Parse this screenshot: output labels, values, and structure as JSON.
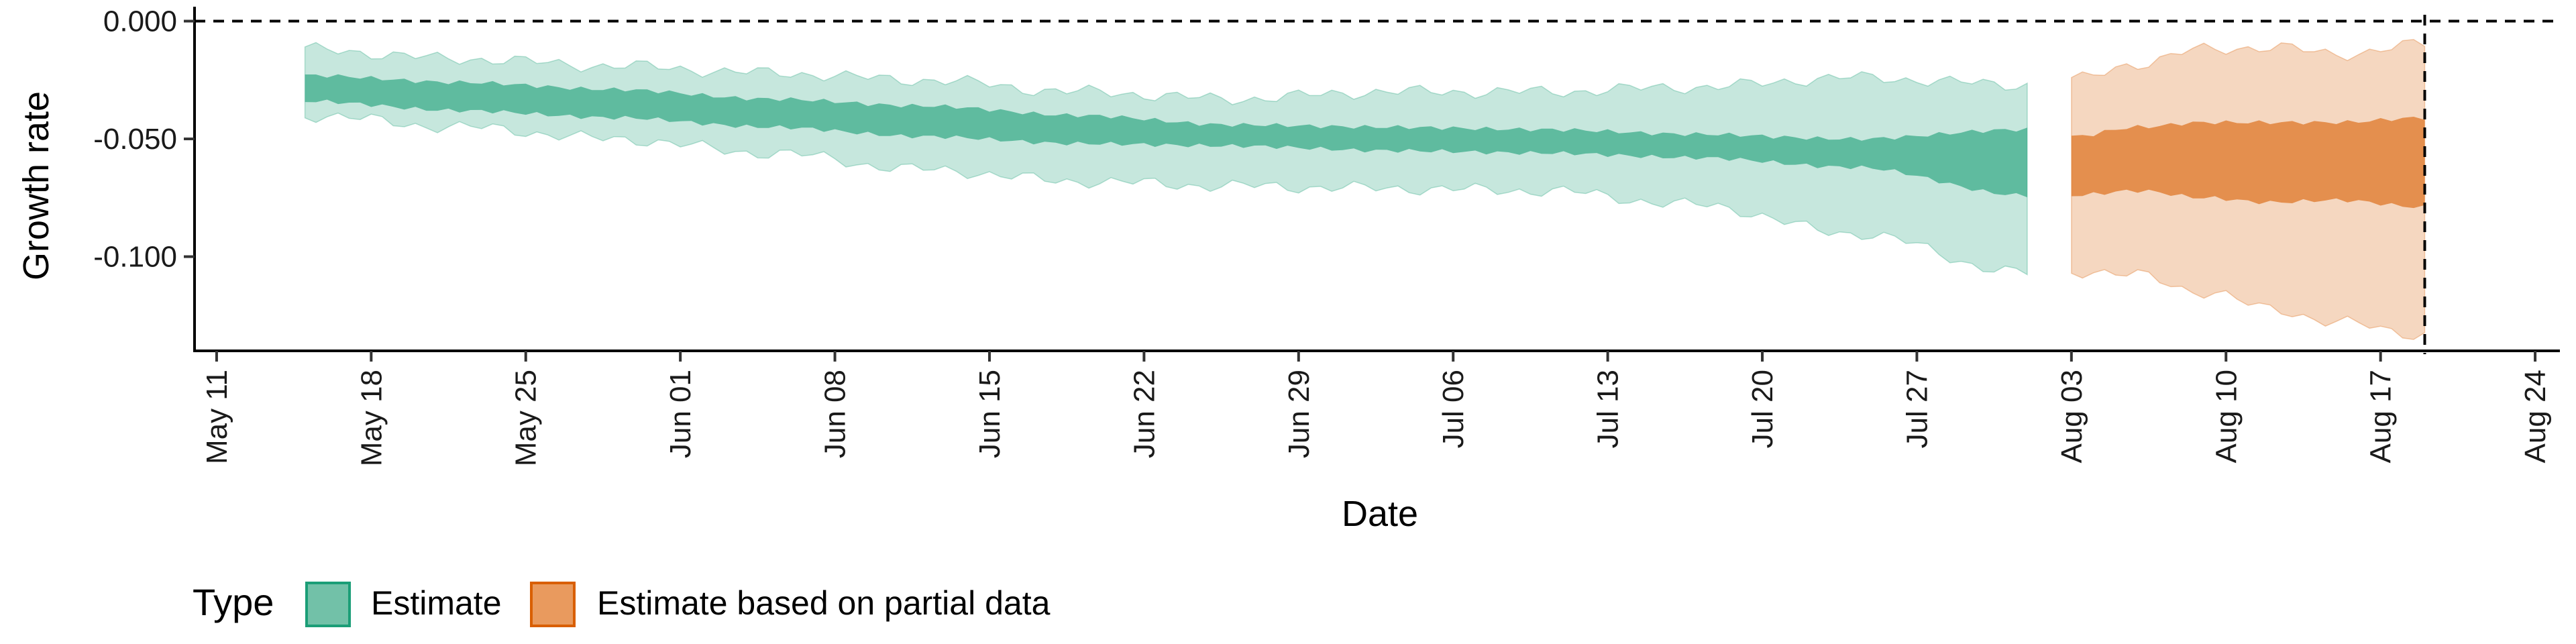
{
  "chart_data": {
    "type": "area",
    "xlabel": "Date",
    "ylabel": "Growth rate",
    "y_ticks": [
      0,
      -0.05,
      -0.1
    ],
    "y_tick_labels": [
      "0.000",
      "-0.050",
      "-0.100"
    ],
    "ylim": [
      -0.14,
      0.001
    ],
    "x_ticks": [
      "2021-05-11",
      "2021-05-18",
      "2021-05-25",
      "2021-06-01",
      "2021-06-08",
      "2021-06-15",
      "2021-06-22",
      "2021-06-29",
      "2021-07-06",
      "2021-07-13",
      "2021-07-20",
      "2021-07-27",
      "2021-08-03",
      "2021-08-10",
      "2021-08-17",
      "2021-08-24"
    ],
    "x_tick_labels": [
      "May 11",
      "May 18",
      "May 25",
      "Jun 01",
      "Jun 08",
      "Jun 15",
      "Jun 22",
      "Jun 29",
      "Jul 06",
      "Jul 13",
      "Jul 20",
      "Jul 27",
      "Aug 03",
      "Aug 10",
      "Aug 17",
      "Aug 24"
    ],
    "xlim": [
      "2021-05-10",
      "2021-08-25"
    ],
    "reference_lines": {
      "horizontal_y": 0,
      "vertical_x": "2021-08-19",
      "style": "dashed"
    },
    "legend": {
      "title": "Type",
      "placement": "bottom-left",
      "entries": [
        "Estimate",
        "Estimate based on partial data"
      ]
    },
    "series": [
      {
        "name": "Estimate",
        "color": "#1b9e77",
        "x": [
          "2021-05-15",
          "2021-05-22",
          "2021-05-29",
          "2021-06-05",
          "2021-06-12",
          "2021-06-19",
          "2021-06-26",
          "2021-07-03",
          "2021-07-10",
          "2021-07-17",
          "2021-07-24",
          "2021-08-01"
        ],
        "inner_lower": [
          -0.034,
          -0.038,
          -0.041,
          -0.045,
          -0.049,
          -0.052,
          -0.053,
          -0.055,
          -0.056,
          -0.058,
          -0.062,
          -0.074
        ],
        "inner_upper": [
          -0.023,
          -0.026,
          -0.029,
          -0.033,
          -0.036,
          -0.04,
          -0.044,
          -0.045,
          -0.046,
          -0.048,
          -0.05,
          -0.046
        ],
        "outer_lower": [
          -0.04,
          -0.045,
          -0.05,
          -0.056,
          -0.063,
          -0.068,
          -0.07,
          -0.071,
          -0.072,
          -0.078,
          -0.09,
          -0.107
        ],
        "outer_upper": [
          -0.012,
          -0.016,
          -0.019,
          -0.022,
          -0.025,
          -0.03,
          -0.033,
          -0.03,
          -0.03,
          -0.028,
          -0.024,
          -0.027
        ]
      },
      {
        "name": "Estimate based on partial data",
        "color": "#d95f02",
        "x": [
          "2021-08-03",
          "2021-08-06",
          "2021-08-09",
          "2021-08-12",
          "2021-08-15",
          "2021-08-19"
        ],
        "inner_lower": [
          -0.074,
          -0.072,
          -0.075,
          -0.077,
          -0.076,
          -0.079
        ],
        "inner_upper": [
          -0.049,
          -0.045,
          -0.043,
          -0.043,
          -0.043,
          -0.041
        ],
        "outer_lower": [
          -0.106,
          -0.108,
          -0.115,
          -0.122,
          -0.128,
          -0.133
        ],
        "outer_upper": [
          -0.025,
          -0.018,
          -0.012,
          -0.011,
          -0.014,
          -0.01
        ]
      }
    ]
  }
}
